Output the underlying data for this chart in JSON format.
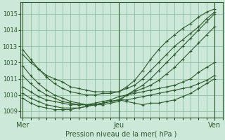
{
  "bg_color": "#cce8d8",
  "grid_color": "#88b898",
  "line_color": "#2d5a2d",
  "marker_color": "#2d5a2d",
  "title": "Pression niveau de la mer( hPa )",
  "yticks": [
    1009,
    1010,
    1011,
    1012,
    1013,
    1014,
    1015
  ],
  "ylim": [
    1008.6,
    1015.7
  ],
  "xtick_labels": [
    "Mer",
    "Jeu",
    "Ven"
  ],
  "xtick_positions": [
    0,
    12,
    24
  ],
  "xlim": [
    -0.3,
    25
  ],
  "series": [
    {
      "x": [
        0,
        1,
        2,
        3,
        4,
        5,
        6,
        7,
        8,
        9,
        10,
        11,
        12,
        13,
        14,
        15,
        16,
        17,
        18,
        19,
        20,
        21,
        22,
        23,
        24
      ],
      "y": [
        1012.5,
        1012.0,
        1011.6,
        1011.2,
        1011.0,
        1010.8,
        1010.5,
        1010.4,
        1010.3,
        1010.2,
        1010.2,
        1010.2,
        1010.2,
        1010.5,
        1010.9,
        1011.5,
        1012.2,
        1012.8,
        1013.3,
        1013.7,
        1014.1,
        1014.4,
        1014.8,
        1015.1,
        1015.3
      ]
    },
    {
      "x": [
        0,
        1,
        2,
        3,
        4,
        5,
        6,
        7,
        8,
        9,
        10,
        11,
        12,
        13,
        14,
        15,
        16,
        17,
        18,
        19,
        20,
        21,
        22,
        23,
        24
      ],
      "y": [
        1011.8,
        1011.2,
        1010.7,
        1010.3,
        1010.0,
        1009.8,
        1009.6,
        1009.5,
        1009.4,
        1009.4,
        1009.4,
        1009.5,
        1009.6,
        1010.0,
        1010.3,
        1010.6,
        1011.0,
        1011.5,
        1012.0,
        1012.5,
        1013.0,
        1013.5,
        1014.0,
        1014.5,
        1015.0
      ]
    },
    {
      "x": [
        0,
        1,
        2,
        3,
        4,
        5,
        6,
        7,
        8,
        9,
        10,
        11,
        12,
        13,
        14,
        15,
        16,
        17,
        18,
        19,
        20,
        21,
        22,
        23,
        24
      ],
      "y": [
        1011.2,
        1010.7,
        1010.3,
        1010.0,
        1009.8,
        1009.6,
        1009.5,
        1009.4,
        1009.4,
        1009.4,
        1009.5,
        1009.6,
        1009.7,
        1010.0,
        1010.2,
        1010.4,
        1010.6,
        1010.9,
        1011.3,
        1011.7,
        1012.2,
        1012.7,
        1013.2,
        1013.7,
        1014.2
      ]
    },
    {
      "x": [
        0,
        1,
        2,
        3,
        4,
        5,
        6,
        7,
        8,
        9,
        10,
        11,
        12,
        13,
        14,
        15,
        16,
        17,
        18,
        19,
        20,
        21,
        22,
        23,
        24
      ],
      "y": [
        1010.5,
        1010.2,
        1009.9,
        1009.7,
        1009.6,
        1009.5,
        1009.4,
        1009.4,
        1009.4,
        1009.5,
        1009.6,
        1009.7,
        1009.9,
        1010.0,
        1010.1,
        1010.2,
        1010.3,
        1010.4,
        1010.5,
        1010.6,
        1010.8,
        1011.0,
        1011.4,
        1011.7,
        1012.0
      ]
    },
    {
      "x": [
        0,
        1,
        2,
        3,
        4,
        5,
        6,
        7,
        8,
        9,
        10,
        11,
        12,
        13,
        14,
        15,
        16,
        17,
        18,
        19,
        20,
        21,
        22,
        23,
        24
      ],
      "y": [
        1010.1,
        1009.8,
        1009.6,
        1009.4,
        1009.3,
        1009.2,
        1009.2,
        1009.2,
        1009.3,
        1009.4,
        1009.5,
        1009.6,
        1009.7,
        1009.7,
        1009.8,
        1009.9,
        1010.0,
        1010.1,
        1010.2,
        1010.3,
        1010.4,
        1010.5,
        1010.7,
        1010.9,
        1011.2
      ]
    },
    {
      "x": [
        0,
        1,
        2,
        3,
        4,
        5,
        6,
        7,
        8,
        9,
        10,
        11,
        12,
        13,
        14,
        15,
        16,
        17,
        18,
        19,
        20,
        21,
        22,
        23,
        24
      ],
      "y": [
        1012.8,
        1012.2,
        1011.6,
        1011.1,
        1010.7,
        1010.4,
        1010.2,
        1010.1,
        1010.0,
        1010.0,
        1010.1,
        1010.1,
        1010.2,
        1010.4,
        1010.6,
        1011.0,
        1011.5,
        1012.0,
        1012.5,
        1013.0,
        1013.4,
        1013.8,
        1014.2,
        1014.7,
        1015.1
      ]
    },
    {
      "x": [
        0,
        1,
        2,
        3,
        4,
        5,
        6,
        7,
        8,
        9,
        10,
        11,
        12,
        13,
        14,
        15,
        16,
        17,
        18,
        19,
        20,
        21,
        22,
        23,
        24
      ],
      "y": [
        1009.8,
        1009.5,
        1009.3,
        1009.2,
        1009.1,
        1009.1,
        1009.1,
        1009.2,
        1009.3,
        1009.4,
        1009.5,
        1009.6,
        1009.7,
        1009.6,
        1009.5,
        1009.4,
        1009.5,
        1009.5,
        1009.6,
        1009.7,
        1009.9,
        1010.1,
        1010.4,
        1010.7,
        1011.0
      ]
    }
  ]
}
